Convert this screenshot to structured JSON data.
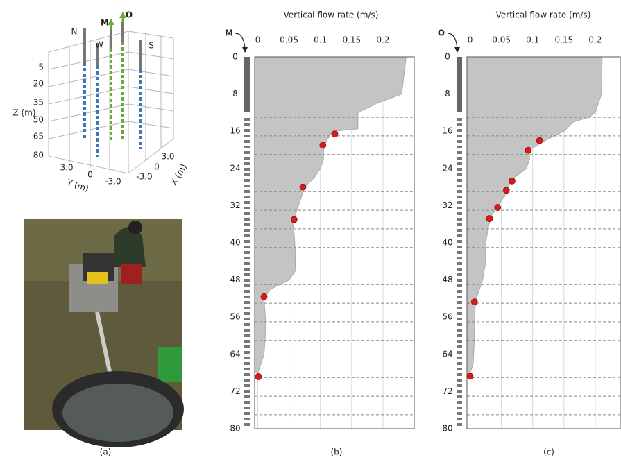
{
  "chart_data": [
    {
      "type": "wells3d",
      "zlabel": "Z (m)",
      "xlabel": "X (m)",
      "ylabel": "Y (m)",
      "zticks": [
        5,
        20,
        35,
        50,
        65,
        80
      ],
      "yticks": [
        {
          "value": 3,
          "label": "3.0"
        },
        0,
        {
          "value": -3,
          "label": "-3.0"
        }
      ],
      "xticks": [
        {
          "value": 3,
          "label": "3.0"
        },
        0,
        {
          "value": -3,
          "label": "-3.0"
        }
      ],
      "wells": [
        {
          "name": "N",
          "color": "#3f78b4"
        },
        {
          "name": "W",
          "color": "#3f78b4"
        },
        {
          "name": "M",
          "color": "#6aaa3a"
        },
        {
          "name": "O",
          "color": "#6aaa3a"
        },
        {
          "name": "S",
          "color": "#3f78b4"
        }
      ],
      "caption": "(a)"
    },
    {
      "type": "profile",
      "title": "Vertical flow rate (m/s)",
      "well": "M",
      "caption": "(b)",
      "xlim": [
        -0.005,
        0.25
      ],
      "xticks": [
        0,
        0.05,
        0.1,
        0.15,
        0.2
      ],
      "ylim": [
        0,
        80
      ],
      "yticks": [
        0,
        8,
        16,
        24,
        32,
        40,
        48,
        56,
        64,
        72,
        80
      ],
      "hgrid": [
        13,
        17,
        21,
        25,
        29,
        33,
        37,
        41,
        45,
        49,
        53,
        57,
        61,
        65,
        69,
        73,
        77
      ],
      "series": [
        {
          "color": "#c4c4c4",
          "style": "area",
          "depth": [
            0,
            8,
            10,
            12,
            14,
            15.5,
            16,
            18,
            20,
            22,
            24,
            26,
            28,
            30,
            32,
            34,
            35,
            38,
            42,
            46,
            48,
            50,
            52,
            56,
            60,
            64,
            66,
            68
          ],
          "values": [
            0.237,
            0.23,
            0.19,
            0.16,
            0.16,
            0.16,
            0.12,
            0.11,
            0.105,
            0.105,
            0.1,
            0.09,
            0.075,
            0.07,
            0.065,
            0.06,
            0.055,
            0.058,
            0.06,
            0.06,
            0.05,
            0.02,
            0.01,
            0.012,
            0.012,
            0.01,
            0.005,
            0
          ]
        },
        {
          "color": "#d81c1c",
          "style": "points",
          "depth": [
            16.6,
            19,
            28,
            35,
            51.6,
            68.8
          ],
          "values": [
            0.123,
            0.104,
            0.072,
            0.058,
            0.01,
            0.001
          ]
        }
      ]
    },
    {
      "type": "profile",
      "title": "Vertical flow rate (m/s)",
      "well": "O",
      "caption": "(c)",
      "xlim": [
        -0.005,
        0.24
      ],
      "xticks": [
        0,
        0.05,
        0.1,
        0.15,
        0.2
      ],
      "ylim": [
        0,
        80
      ],
      "yticks": [
        0,
        8,
        16,
        24,
        32,
        40,
        48,
        56,
        64,
        72,
        80
      ],
      "hgrid": [
        13,
        17,
        21,
        25,
        29,
        33,
        37,
        41,
        45,
        49,
        53,
        57,
        61,
        65,
        69,
        73,
        77
      ],
      "series": [
        {
          "color": "#c4c4c4",
          "style": "area",
          "depth": [
            0,
            8,
            10,
            12,
            13,
            14,
            16,
            18,
            20,
            22,
            24,
            26,
            28,
            30,
            32,
            34,
            36,
            40,
            44,
            48,
            52,
            54,
            60,
            66,
            68
          ],
          "values": [
            0.211,
            0.21,
            0.205,
            0.2,
            0.19,
            0.165,
            0.15,
            0.12,
            0.095,
            0.095,
            0.09,
            0.07,
            0.06,
            0.055,
            0.045,
            0.035,
            0.03,
            0.025,
            0.025,
            0.02,
            0.01,
            0.008,
            0.007,
            0.005,
            0
          ]
        },
        {
          "color": "#d81c1c",
          "style": "points",
          "depth": [
            18,
            20.1,
            26.7,
            28.7,
            32.4,
            34.8,
            52.7,
            68.7
          ],
          "values": [
            0.111,
            0.093,
            0.067,
            0.058,
            0.044,
            0.031,
            0.007,
            0
          ]
        }
      ]
    }
  ]
}
